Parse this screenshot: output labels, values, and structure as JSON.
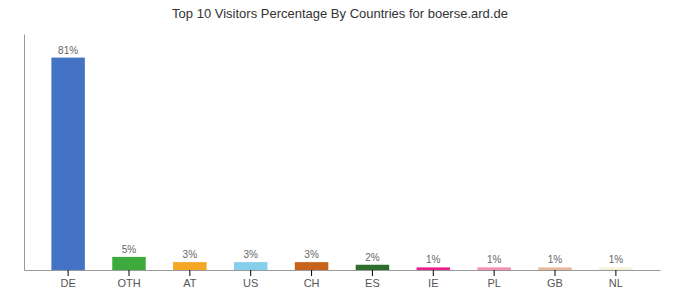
{
  "chart_data": {
    "type": "bar",
    "title": "Top 10 Visitors Percentage By Countries for boerse.ard.de",
    "categories": [
      "DE",
      "OTH",
      "AT",
      "US",
      "CH",
      "ES",
      "IE",
      "PL",
      "GB",
      "NL"
    ],
    "values": [
      81,
      5,
      3,
      3,
      3,
      2,
      1,
      1,
      1,
      1
    ],
    "value_labels": [
      "81%",
      "5%",
      "3%",
      "3%",
      "3%",
      "2%",
      "1%",
      "1%",
      "1%",
      "1%"
    ],
    "colors": [
      "#4472c4",
      "#3daa3d",
      "#f5a623",
      "#87ceeb",
      "#c8621a",
      "#2d6e2d",
      "#e91e8c",
      "#f48fb1",
      "#e8b89a",
      "#f5f0d8"
    ],
    "ylim": [
      0,
      90
    ],
    "grid": false,
    "data_labels": true,
    "tick_labels": "x"
  }
}
